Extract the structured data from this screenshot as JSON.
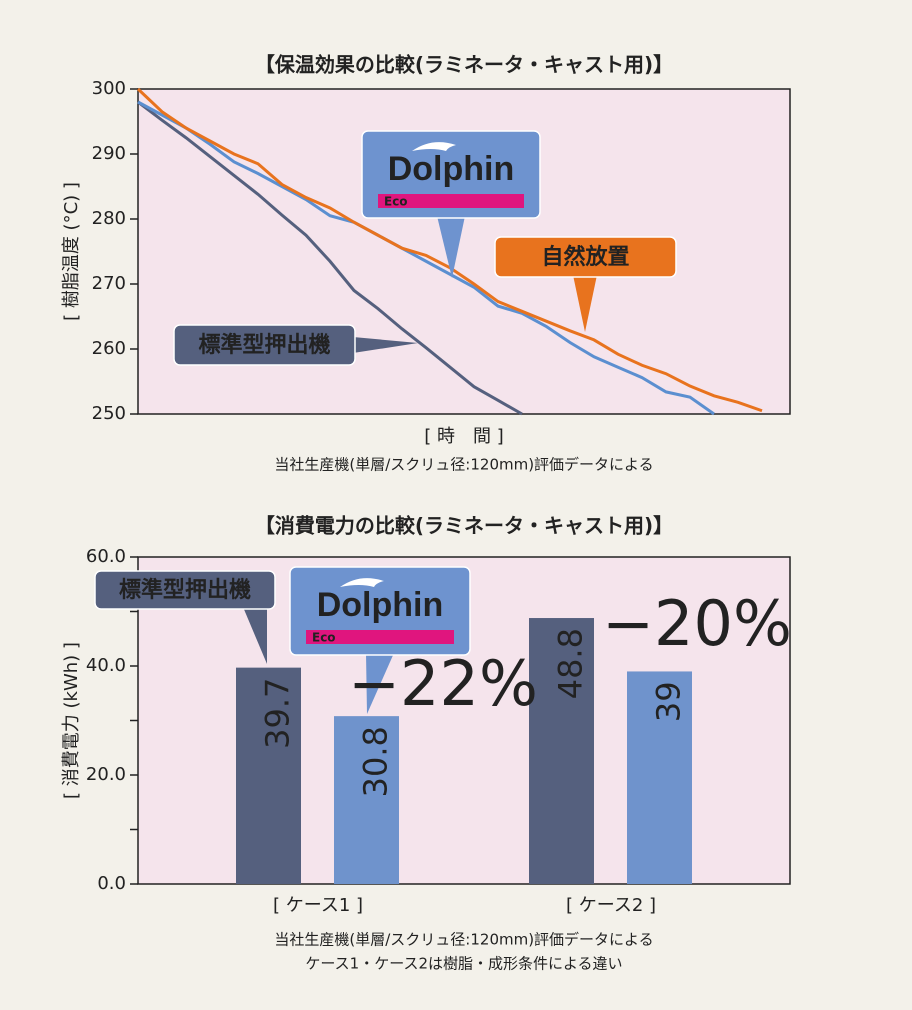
{
  "chart_data": [
    {
      "type": "line",
      "title": "【保温効果の比較(ラミネータ・キャスト用)】",
      "ylabel": "[ 樹脂温度 (°C) ]",
      "xlabel": "[ 時　間 ]",
      "note": "当社生産機(単層/スクリュ径:120mm)評価データによる",
      "ylim": [
        250,
        300
      ],
      "yticks": [
        250,
        260,
        270,
        280,
        290,
        300
      ],
      "series": [
        {
          "name": "標準型押出機",
          "color": "#55607e",
          "values": [
            298,
            295.2,
            292.5,
            289.6,
            286.7,
            283.8,
            280.6,
            277.5,
            273.5,
            269,
            266.2,
            263.1,
            260.2,
            257.2,
            254.2,
            252.1,
            250,
            null,
            null,
            null,
            null,
            null,
            null,
            null,
            null,
            null,
            null,
            null
          ]
        },
        {
          "name": "Dolphin",
          "name_badge": "Eco",
          "color": "#5b8fd0",
          "values": [
            298,
            296,
            294,
            291.5,
            288.8,
            287,
            285,
            283,
            280.5,
            279.5,
            277.5,
            275.5,
            273.5,
            271.5,
            269.5,
            266.6,
            265.5,
            263.5,
            261,
            258.8,
            257.2,
            255.6,
            253.4,
            252.6,
            250,
            null,
            null,
            null
          ]
        },
        {
          "name": "自然放置",
          "color": "#e8731e",
          "values": [
            300,
            296.5,
            294,
            292,
            290,
            288.5,
            285.3,
            283.3,
            281.7,
            279.5,
            277.5,
            275.5,
            274.4,
            272.5,
            270,
            267.3,
            265.8,
            264.3,
            262.8,
            261.4,
            259.2,
            257.5,
            256.2,
            254.3,
            252.8,
            251.8,
            250.5,
            null
          ]
        }
      ]
    },
    {
      "type": "bar",
      "title": "【消費電力の比較(ラミネータ・キャスト用)】",
      "ylabel": "[ 消費電力 (kWh) ]",
      "notes": [
        "当社生産機(単層/スクリュ径:120mm)評価データによる",
        "ケース1・ケース2は樹脂・成形条件による違い"
      ],
      "categories": [
        "[ ケース1 ]",
        "[ ケース2 ]"
      ],
      "ylim": [
        0,
        60
      ],
      "yticks": [
        {
          "value": 0,
          "label": "0.0"
        },
        {
          "value": 20,
          "label": "20.0"
        },
        {
          "value": 40,
          "label": "40.0"
        },
        {
          "value": 60,
          "label": "60.0"
        }
      ],
      "yticks_minor": [
        10,
        30,
        50
      ],
      "series": [
        {
          "name": "標準型押出機",
          "color": "#55607e",
          "values": [
            39.7,
            48.8
          ]
        },
        {
          "name": "Dolphin",
          "name_badge": "Eco",
          "color": "#6f93cc",
          "values": [
            30.8,
            39.0
          ]
        }
      ],
      "annotations": [
        "−22%",
        "−20%"
      ]
    }
  ]
}
